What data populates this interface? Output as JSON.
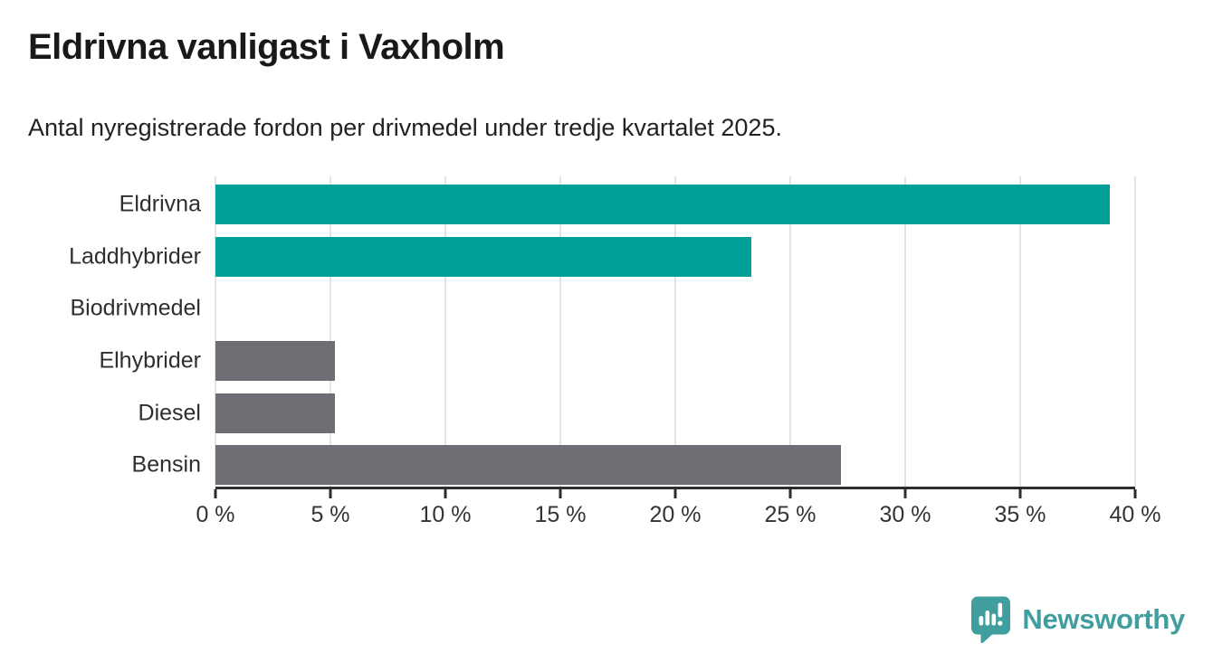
{
  "title": "Eldrivna vanligast i Vaxholm",
  "subtitle": "Antal nyregistrerade fordon per drivmedel under tredje kvartalet 2025.",
  "chart_data": {
    "type": "bar",
    "orientation": "horizontal",
    "title": "Eldrivna vanligast i Vaxholm",
    "subtitle": "Antal nyregistrerade fordon per drivmedel under tredje kvartalet 2025.",
    "categories": [
      "Eldrivna",
      "Laddhybrider",
      "Biodrivmedel",
      "Elhybrider",
      "Diesel",
      "Bensin"
    ],
    "values": [
      38.9,
      23.3,
      0,
      5.2,
      5.2,
      27.2
    ],
    "unit": "%",
    "xlim": [
      0,
      40
    ],
    "x_ticks": [
      0,
      5,
      10,
      15,
      20,
      25,
      30,
      35,
      40
    ],
    "x_tick_labels": [
      "0 %",
      "5 %",
      "10 %",
      "15 %",
      "20 %",
      "25 %",
      "30 %",
      "35 %",
      "40 %"
    ],
    "grid": true,
    "legend": "none",
    "bar_colors": [
      "#00a099",
      "#00a099",
      "#6e6e74",
      "#6e6e74",
      "#6e6e74",
      "#6e6e74"
    ],
    "highlight_color": "#00a099",
    "default_color": "#6e6e74",
    "gridline_color": "#e4e4e4",
    "axis_color": "#2d2d2d"
  },
  "footer": {
    "brand": "Newsworthy",
    "brand_color": "#419e9e",
    "logo_icon": "newsworthy-speech-bubble-chart-icon"
  }
}
